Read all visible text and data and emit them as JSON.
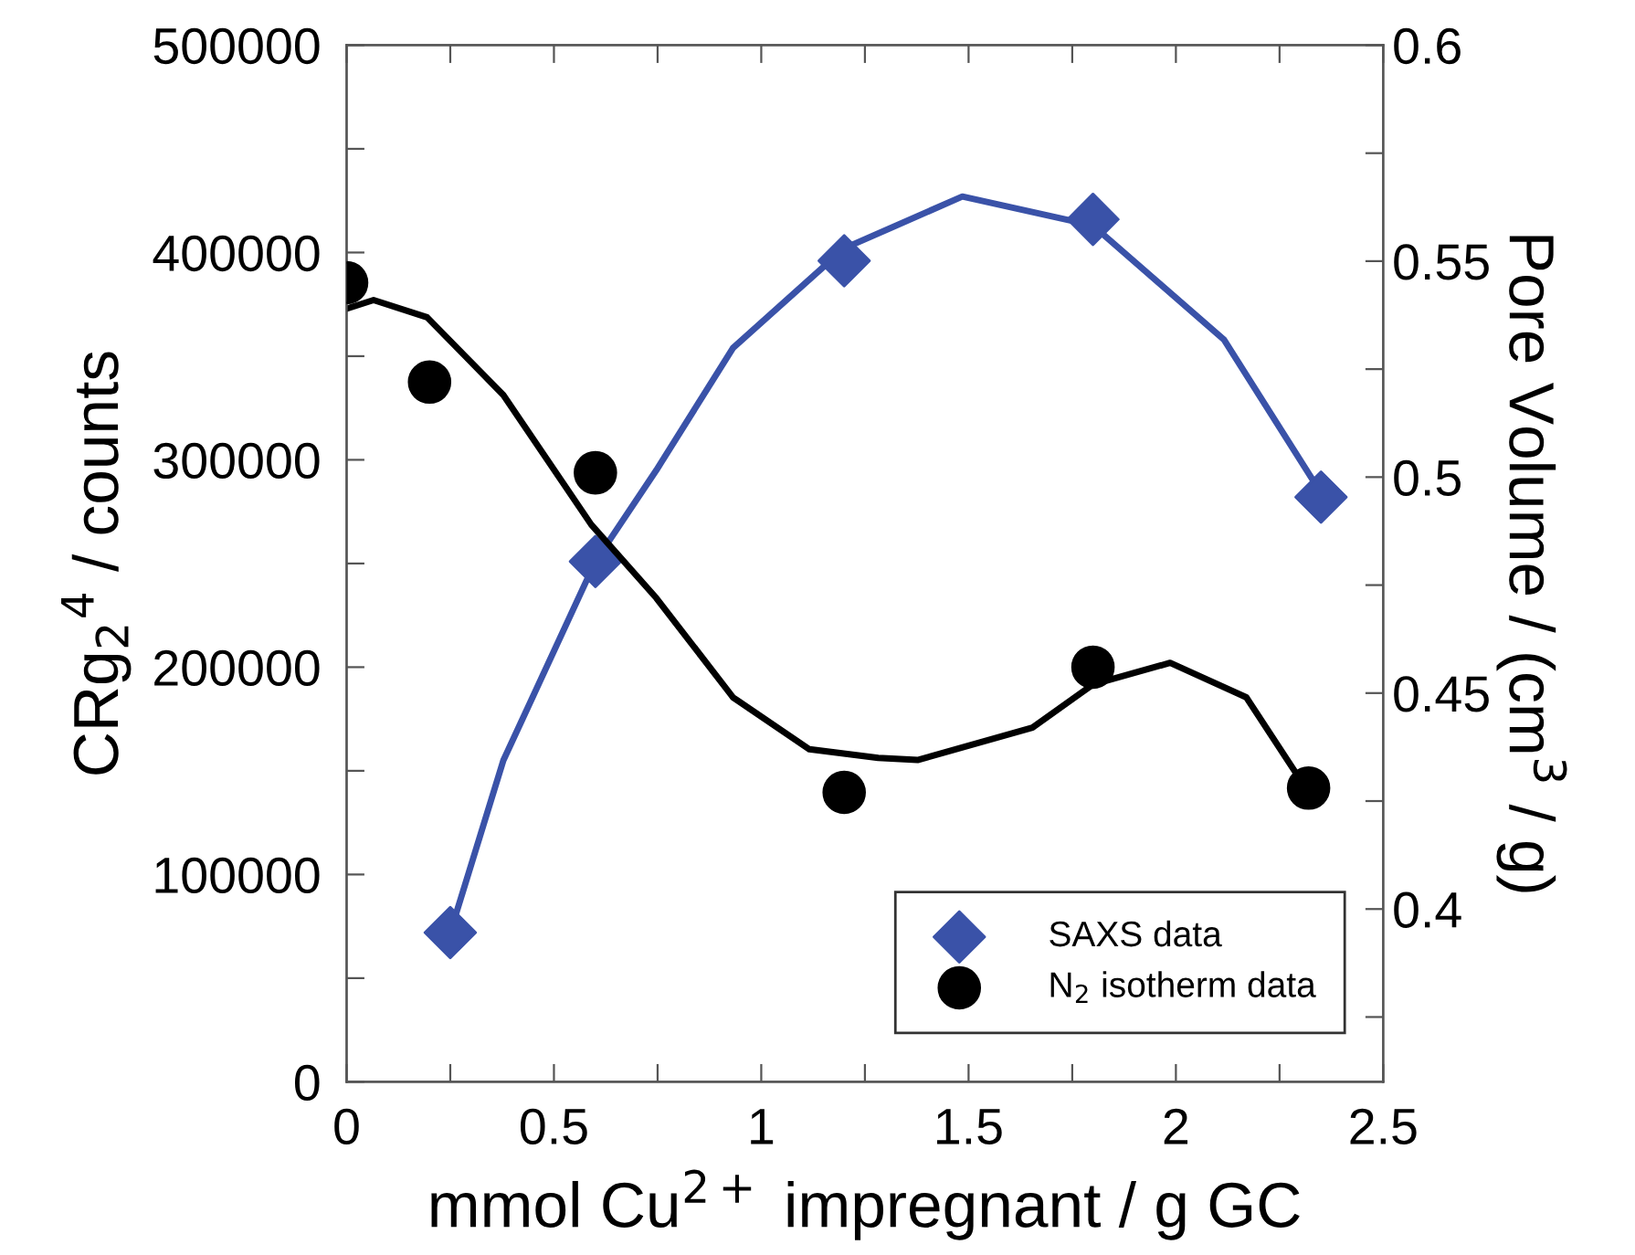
{
  "chart_data": {
    "type": "scatter",
    "xlabel": "mmol Cu$^{2+}$ impregnant / g GC",
    "ylabel": "CRg$_{2}$$^{4}$ / counts",
    "y2label": "Pore Volume / (cm$^{3}$ / g)",
    "xlim": [
      0,
      2.5
    ],
    "xticks": [
      0,
      {
        "value": 0.25,
        "label": null
      },
      0.5,
      {
        "value": 0.75,
        "label": null
      },
      1,
      {
        "value": 1.25,
        "label": null
      },
      1.5,
      {
        "value": 1.75,
        "label": null
      },
      2,
      {
        "value": 2.25,
        "label": null
      },
      2.5
    ],
    "ylim": [
      0,
      500000
    ],
    "yticks": [
      0,
      {
        "value": 50000,
        "label": null
      },
      100000,
      {
        "value": 150000,
        "label": null
      },
      200000,
      {
        "value": 250000,
        "label": null
      },
      300000,
      {
        "value": 350000,
        "label": null
      },
      400000,
      {
        "value": 450000,
        "label": null
      },
      500000
    ],
    "y2lim": [
      0.36,
      0.6
    ],
    "y2ticks": [
      {
        "value": 0.375,
        "label": null
      },
      0.4,
      {
        "value": 0.425,
        "label": null
      },
      0.45,
      {
        "value": 0.475,
        "label": null
      },
      0.5,
      {
        "value": 0.525,
        "label": null
      },
      0.55,
      {
        "value": 0.575,
        "label": null
      },
      0.6
    ],
    "legend": "bottom right",
    "grid": false,
    "series": [
      {
        "type": "line",
        "color": "#3a52a8",
        "x": [
          0.25,
          0.378,
          0.6,
          0.747,
          0.932,
          1.2,
          1.485,
          1.8,
          2.116,
          2.35
        ],
        "values": [
          72000,
          155000,
          251000,
          295000,
          354000,
          402000,
          427000,
          413000,
          358000,
          284000
        ]
      },
      {
        "type": "line",
        "color": "#000000",
        "axis": "y2",
        "x": [
          0,
          0.065,
          0.194,
          0.378,
          0.59,
          0.747,
          0.932,
          1.116,
          1.282,
          1.377,
          1.654,
          1.8,
          1.986,
          2.17,
          2.32
        ],
        "values": [
          0.539,
          0.541,
          0.537,
          0.519,
          0.489,
          0.472,
          0.449,
          0.437,
          0.435,
          0.4345,
          0.442,
          0.452,
          0.457,
          0.449,
          0.427
        ]
      },
      {
        "name": "SAXS data",
        "marker": "diamond",
        "color": "#3a52a8",
        "x": [
          0.25,
          0.6,
          1.2,
          1.8,
          2.35
        ],
        "values": [
          72000,
          251000,
          396000,
          416000,
          282000
        ]
      },
      {
        "name": "N$_{2}$ isotherm data",
        "marker": "circle",
        "color": "#000000",
        "axis": "y2",
        "x": [
          0,
          0.2,
          0.6,
          1.2,
          1.8,
          2.32
        ],
        "values": [
          0.545,
          0.522,
          0.501,
          0.427,
          0.456,
          0.428
        ]
      }
    ]
  }
}
